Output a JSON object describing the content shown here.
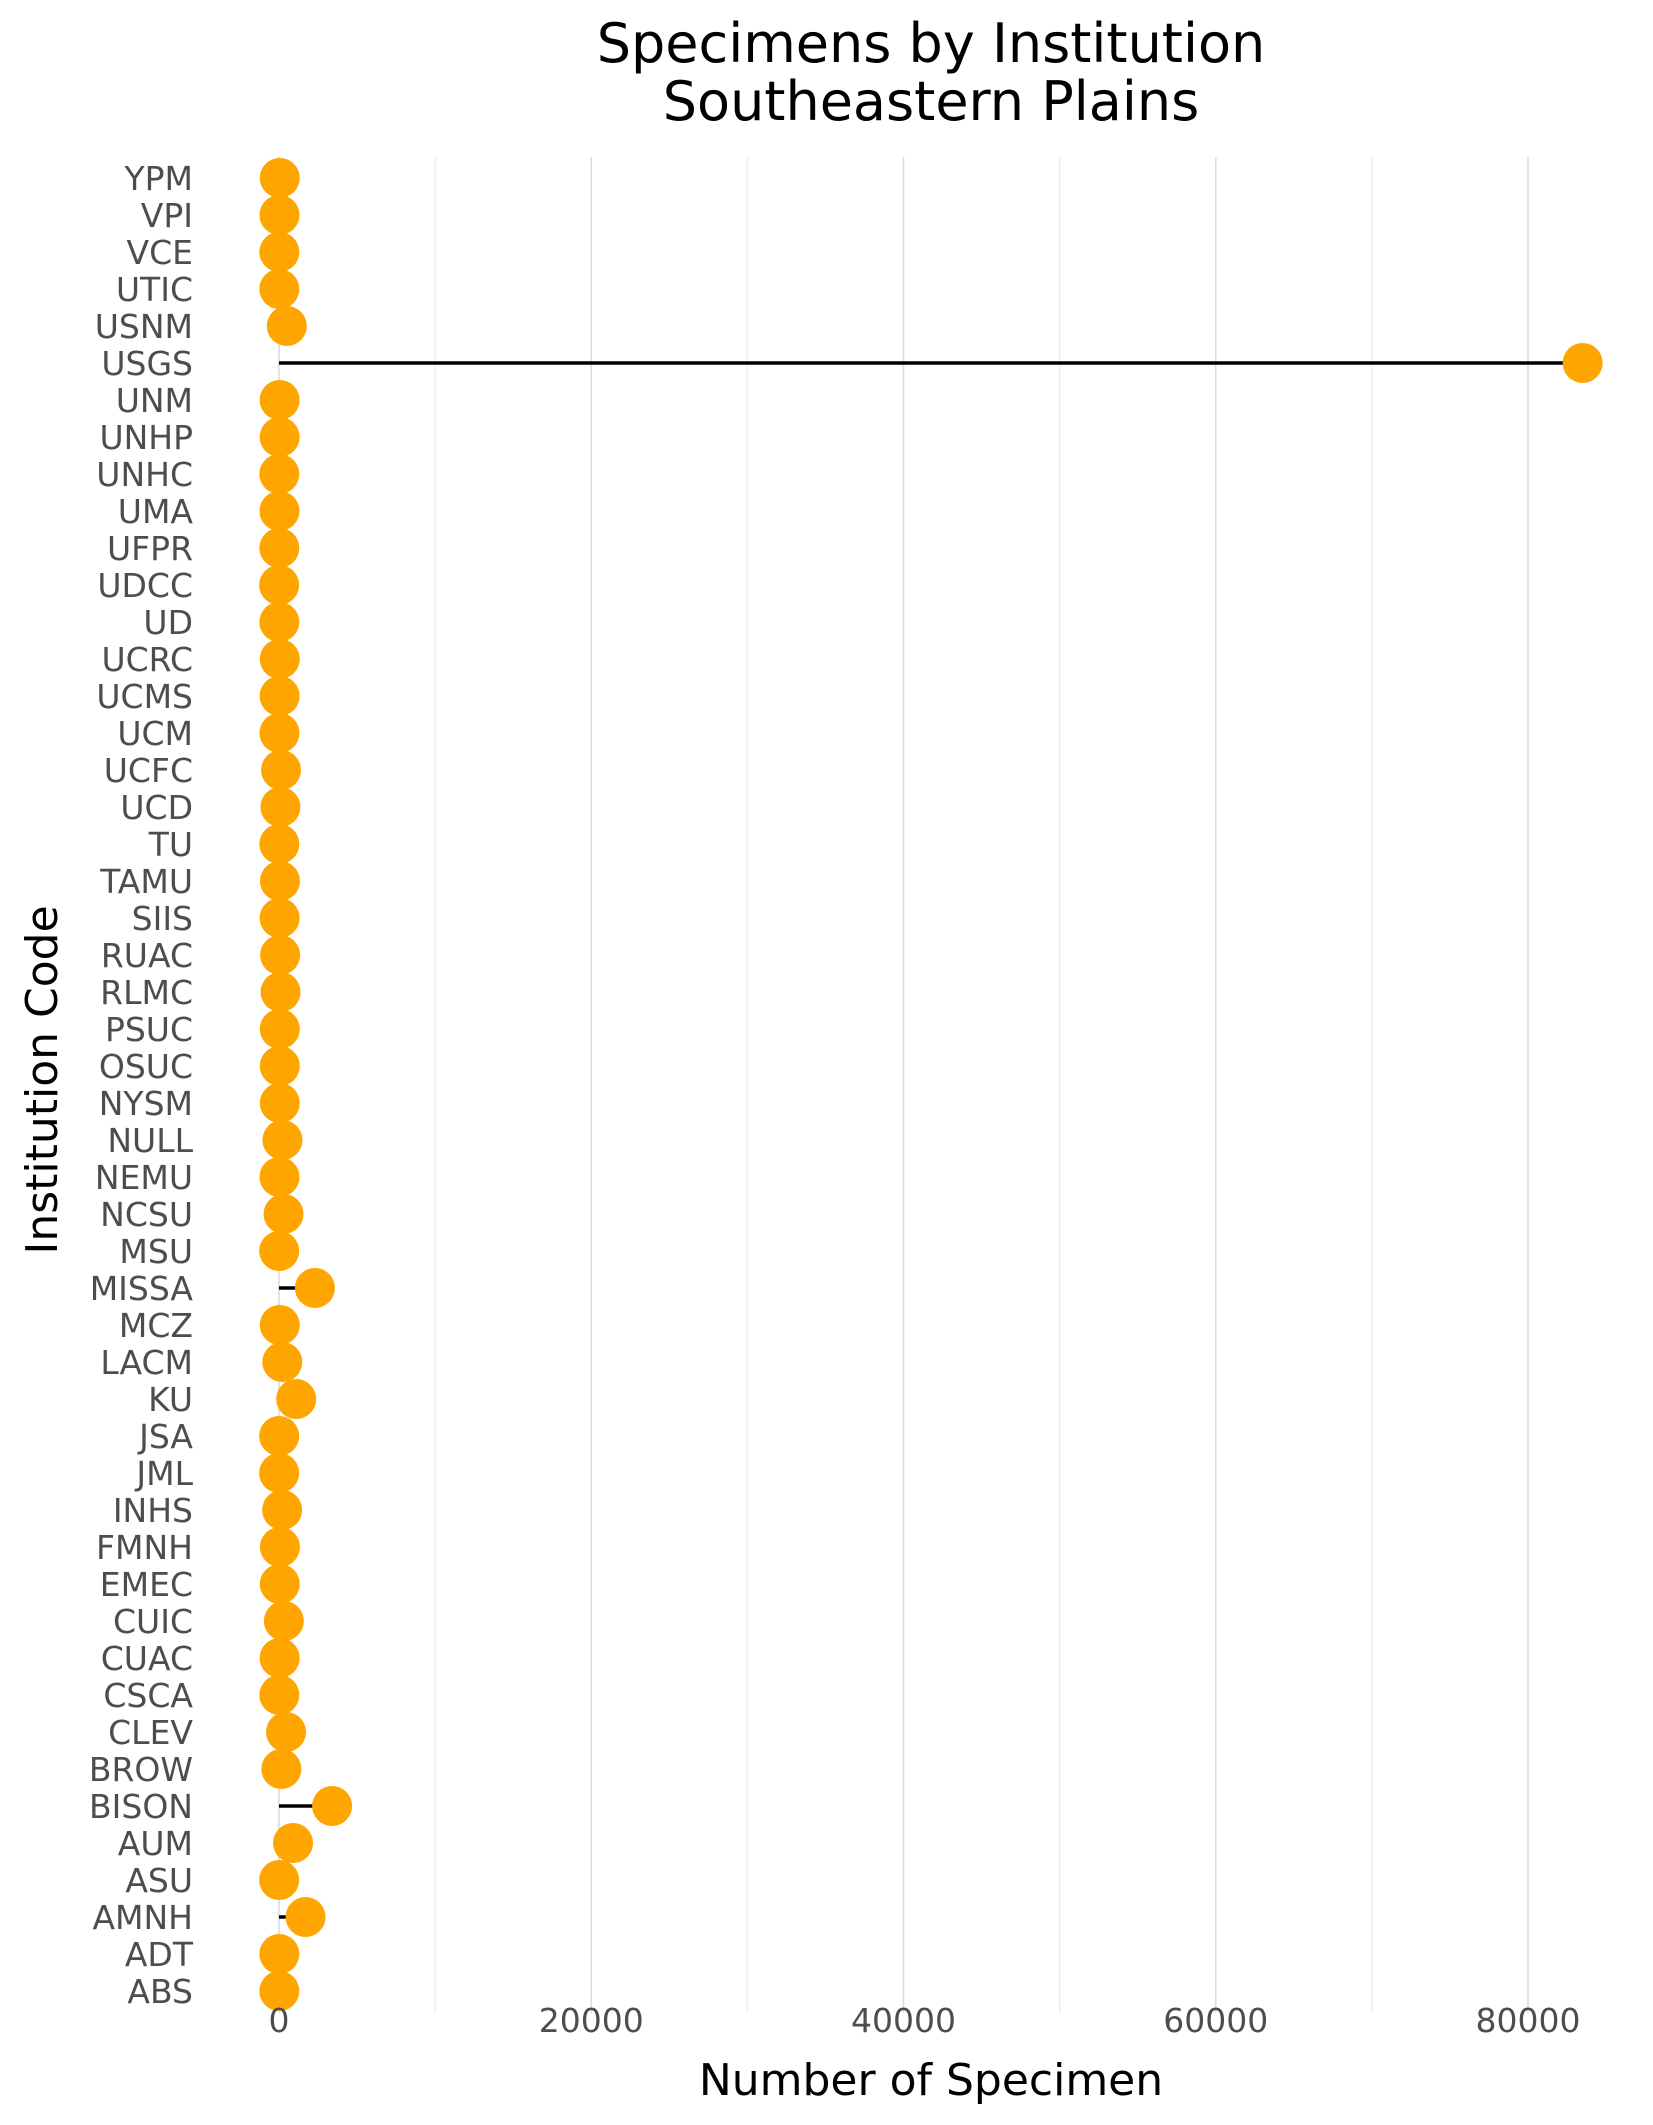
{
  "chart_data": {
    "type": "lollipop",
    "title": "Specimens by Institution",
    "subtitle": "Southeastern Plains",
    "xlabel": "Number of Specimen",
    "ylabel": "Institution Code",
    "xlim": [
      -3000,
      85000
    ],
    "x_ticks": [
      0,
      20000,
      40000,
      60000,
      80000
    ],
    "x_tick_labels": [
      "0",
      "20000",
      "40000",
      "60000",
      "80000"
    ],
    "grid": "vertical",
    "marker_color": "#FFA500",
    "stem_color": "#000000",
    "categories": [
      "YPM",
      "VPI",
      "VCE",
      "UTIC",
      "USNM",
      "USGS",
      "UNM",
      "UNHP",
      "UNHC",
      "UMA",
      "UFPR",
      "UDCC",
      "UD",
      "UCRC",
      "UCMS",
      "UCM",
      "UCFC",
      "UCD",
      "TU",
      "TAMU",
      "SIIS",
      "RUAC",
      "RLMC",
      "PSUC",
      "OSUC",
      "NYSM",
      "NULL",
      "NEMU",
      "NCSU",
      "MSU",
      "MISSA",
      "MCZ",
      "LACM",
      "KU",
      "JSA",
      "JML",
      "INHS",
      "FMNH",
      "EMEC",
      "CUIC",
      "CUAC",
      "CSCA",
      "CLEV",
      "BROW",
      "BISON",
      "AUM",
      "ASU",
      "AMNH",
      "ADT",
      "ABS"
    ],
    "values": [
      50,
      30,
      20,
      20,
      500,
      83500,
      40,
      40,
      20,
      30,
      20,
      10,
      20,
      50,
      40,
      30,
      130,
      90,
      20,
      60,
      40,
      70,
      100,
      50,
      50,
      50,
      220,
      30,
      290,
      10,
      2300,
      50,
      210,
      1100,
      10,
      10,
      200,
      60,
      50,
      310,
      40,
      20,
      450,
      150,
      3400,
      900,
      10,
      1700,
      20,
      20
    ]
  }
}
